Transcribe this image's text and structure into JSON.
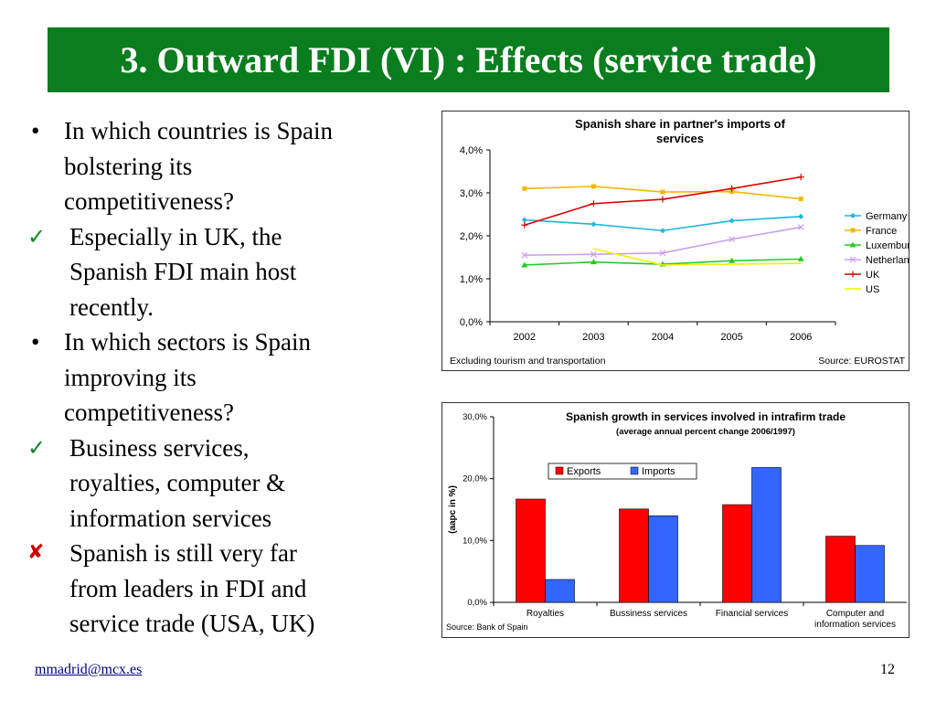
{
  "slide": {
    "title": "3. Outward FDI (VI) : Effects (service trade)",
    "bullets": [
      {
        "marker": "•",
        "kind": "dot",
        "lines": [
          "In which countries is Spain",
          "bolstering its",
          "competitiveness?"
        ]
      },
      {
        "marker": "✓",
        "kind": "check",
        "lines": [
          "Especially in UK, the",
          "Spanish FDI main host",
          "recently."
        ]
      },
      {
        "marker": "•",
        "kind": "dot",
        "lines": [
          "In which sectors is Spain",
          "improving its",
          "competitiveness?"
        ]
      },
      {
        "marker": "✓",
        "kind": "check",
        "lines": [
          "Business services,",
          "royalties, computer &",
          "information services"
        ]
      },
      {
        "marker": "✘",
        "kind": "cross",
        "lines": [
          "Spanish is still very far",
          "from leaders in FDI and",
          "service trade (USA, UK)"
        ]
      }
    ],
    "footer": {
      "email": "mmadrid@mcx.es",
      "page": "12"
    }
  },
  "chart_data": [
    {
      "type": "line",
      "title_lines": [
        "Spanish share in partner's imports of",
        "services"
      ],
      "x": [
        "2002",
        "2003",
        "2004",
        "2005",
        "2006"
      ],
      "yticks": [
        "0,0%",
        "1,0%",
        "2,0%",
        "3,0%",
        "4,0%"
      ],
      "ylim": [
        0,
        4
      ],
      "series": [
        {
          "name": "Germany",
          "color": "#1fb6d9",
          "marker": "diamond",
          "values": [
            2.37,
            2.27,
            2.12,
            2.35,
            2.45
          ]
        },
        {
          "name": "France",
          "color": "#f5b800",
          "marker": "square",
          "values": [
            3.1,
            3.15,
            3.02,
            3.03,
            2.86
          ]
        },
        {
          "name": "Luxemburg",
          "color": "#22cc22",
          "marker": "triangle",
          "values": [
            1.32,
            1.39,
            1.34,
            1.42,
            1.46
          ]
        },
        {
          "name": "Netherlands",
          "color": "#c8a0f0",
          "marker": "x",
          "values": [
            1.55,
            1.57,
            1.6,
            1.92,
            2.2
          ]
        },
        {
          "name": "UK",
          "color": "#e00000",
          "marker": "plus",
          "values": [
            2.25,
            2.75,
            2.85,
            3.1,
            3.37
          ]
        },
        {
          "name": "US",
          "color": "#f5f000",
          "marker": "none",
          "values": [
            null,
            1.7,
            1.32,
            1.34,
            1.36
          ]
        }
      ],
      "note_left": "Excluding tourism and transportation",
      "note_right": "Source: EUROSTAT"
    },
    {
      "type": "bar",
      "title": "Spanish growth in services involved in intrafirm trade",
      "subtitle": "(average annual percent change 2006/1997)",
      "ylabel": "(aapc in %)",
      "yticks": [
        "0,0%",
        "10,0%",
        "20,0%",
        "30,0%"
      ],
      "ylim": [
        0,
        30
      ],
      "categories": [
        [
          "Royalties"
        ],
        [
          "Bussiness services"
        ],
        [
          "Financial services"
        ],
        [
          "Computer and",
          "information services"
        ]
      ],
      "series": [
        {
          "name": "Exports",
          "color": "#ff0000",
          "values": [
            16.7,
            15.1,
            15.8,
            10.7
          ]
        },
        {
          "name": "Imports",
          "color": "#3366ff",
          "values": [
            3.7,
            14.0,
            21.8,
            9.2
          ]
        }
      ],
      "source": "Source: Bank of Spain"
    }
  ]
}
